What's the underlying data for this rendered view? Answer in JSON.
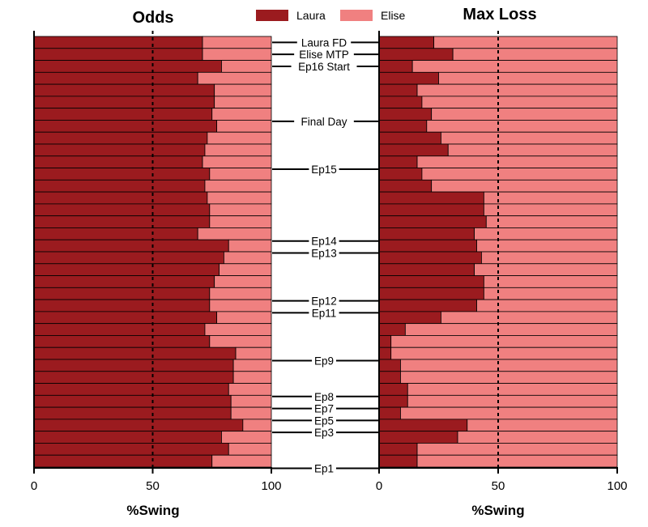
{
  "chart_data": [
    {
      "type": "bar",
      "orientation": "horizontal",
      "stacked": true,
      "title": "Odds",
      "xlabel": "%Swing",
      "xlim": [
        0,
        100
      ],
      "xticks": [
        "0",
        "50",
        "100"
      ],
      "reference_line": 50,
      "series": [
        {
          "name": "Laura",
          "color": "#9b1b1f",
          "values": [
            71,
            71,
            79,
            69,
            76,
            76,
            75,
            77,
            73,
            72,
            71,
            74,
            72,
            73,
            74,
            74,
            69,
            82,
            80,
            78,
            76,
            74,
            74,
            77,
            72,
            74,
            85,
            84,
            84,
            82,
            83,
            83,
            88,
            79,
            82,
            75
          ]
        },
        {
          "name": "Elise",
          "color": "#f08080",
          "values": [
            29,
            29,
            21,
            31,
            24,
            24,
            25,
            23,
            27,
            28,
            29,
            26,
            28,
            27,
            26,
            26,
            31,
            18,
            20,
            22,
            24,
            26,
            26,
            23,
            28,
            26,
            15,
            16,
            16,
            18,
            17,
            17,
            12,
            21,
            18,
            25
          ]
        }
      ]
    },
    {
      "type": "bar",
      "orientation": "horizontal",
      "stacked": true,
      "title": "Max Loss",
      "xlabel": "%Swing",
      "xlim": [
        0,
        100
      ],
      "xticks": [
        "0",
        "50",
        "100"
      ],
      "reference_line": 50,
      "series": [
        {
          "name": "Laura",
          "color": "#9b1b1f",
          "values": [
            23,
            31,
            14,
            25,
            16,
            18,
            22,
            20,
            26,
            29,
            16,
            18,
            22,
            44,
            44,
            45,
            40,
            41,
            43,
            40,
            44,
            44,
            41,
            26,
            11,
            5,
            5,
            9,
            9,
            12,
            12,
            9,
            37,
            33,
            16,
            16
          ]
        },
        {
          "name": "Elise",
          "color": "#f08080",
          "values": [
            77,
            69,
            86,
            75,
            84,
            82,
            78,
            80,
            74,
            71,
            84,
            82,
            78,
            56,
            56,
            55,
            60,
            59,
            57,
            60,
            56,
            56,
            59,
            74,
            89,
            95,
            95,
            91,
            91,
            88,
            88,
            91,
            63,
            67,
            84,
            84
          ]
        }
      ]
    }
  ],
  "legend": {
    "items": [
      {
        "name": "Laura",
        "color": "#9b1b1f"
      },
      {
        "name": "Elise",
        "color": "#f08080"
      }
    ]
  },
  "episode_labels": [
    {
      "label": "Laura FD",
      "row": 0
    },
    {
      "label": "Elise MTP",
      "row": 1
    },
    {
      "label": "Ep16 Start",
      "row": 2
    },
    {
      "label": "Final Day",
      "row": 6.6
    },
    {
      "label": "Ep15",
      "row": 10.6
    },
    {
      "label": "Ep14",
      "row": 16.6
    },
    {
      "label": "Ep13",
      "row": 17.6
    },
    {
      "label": "Ep12",
      "row": 21.6
    },
    {
      "label": "Ep11",
      "row": 22.6
    },
    {
      "label": "Ep9",
      "row": 26.6
    },
    {
      "label": "Ep8",
      "row": 29.6
    },
    {
      "label": "Ep7",
      "row": 30.6
    },
    {
      "label": "Ep5",
      "row": 31.6
    },
    {
      "label": "Ep3",
      "row": 32.6
    },
    {
      "label": "Ep1",
      "row": 35.6
    }
  ]
}
